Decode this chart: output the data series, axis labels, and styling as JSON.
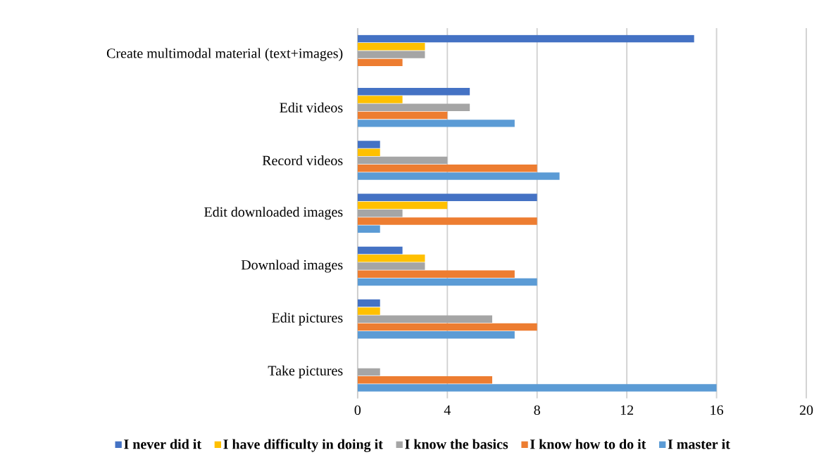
{
  "chart_data": {
    "type": "bar",
    "orientation": "horizontal",
    "categories": [
      "Create multimodal material (text+images)",
      "Edit videos",
      "Record videos",
      "Edit downloaded images",
      "Download images",
      "Edit pictures",
      "Take pictures"
    ],
    "series": [
      {
        "name": "I never did it",
        "color": "#4472c4",
        "values": [
          15,
          5,
          1,
          8,
          2,
          1,
          0
        ]
      },
      {
        "name": "I have difficulty in doing it",
        "color": "#ffc000",
        "values": [
          3,
          2,
          1,
          4,
          3,
          1,
          0
        ]
      },
      {
        "name": "I know the basics",
        "color": "#a5a5a5",
        "values": [
          3,
          5,
          4,
          2,
          3,
          6,
          1
        ]
      },
      {
        "name": "I know how to do it",
        "color": "#ed7d31",
        "values": [
          2,
          4,
          8,
          8,
          7,
          8,
          6
        ]
      },
      {
        "name": "I master it",
        "color": "#5b9bd5",
        "values": [
          0,
          7,
          9,
          1,
          8,
          7,
          16
        ]
      }
    ],
    "xlim": [
      0,
      20
    ],
    "xticks": [
      0,
      4,
      8,
      12,
      16,
      20
    ],
    "grid": "x",
    "legend": "bottom"
  }
}
